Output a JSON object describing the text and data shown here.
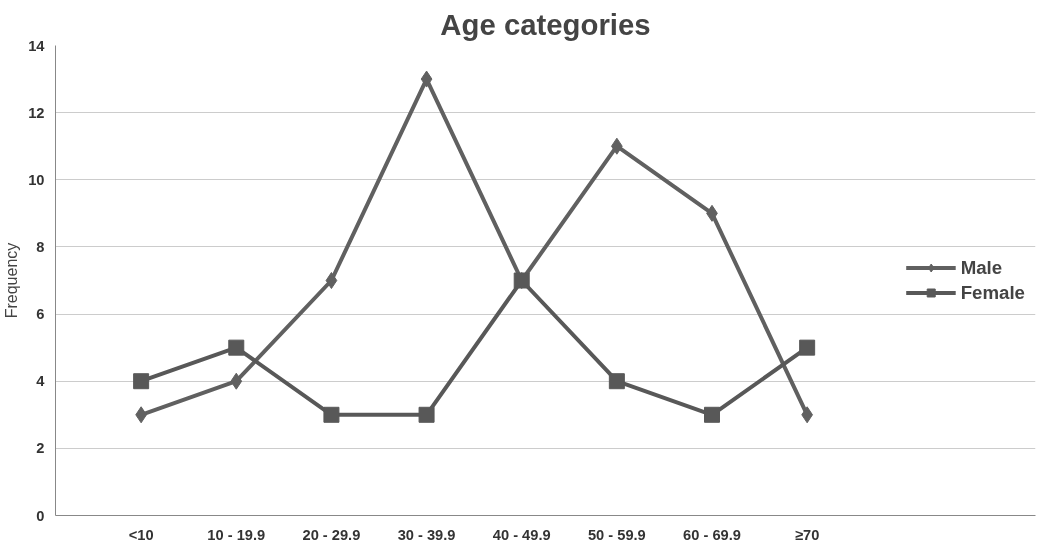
{
  "chart_data": {
    "type": "line",
    "title": "Age categories",
    "ylabel": "Frequency",
    "categories": [
      "<10",
      "10 - 19.9",
      "20 - 29.9",
      "30 - 39.9",
      "40 - 49.9",
      "50 - 59.9",
      "60 - 69.9",
      "≥70"
    ],
    "series": [
      {
        "name": "Male",
        "color": "#606060",
        "marker": "diamond",
        "values": [
          3,
          4,
          7,
          13,
          7,
          11,
          9,
          3
        ]
      },
      {
        "name": "Female",
        "color": "#585858",
        "marker": "square",
        "values": [
          4,
          5,
          3,
          3,
          7,
          4,
          3,
          5
        ]
      }
    ],
    "ylim": [
      0,
      14
    ],
    "yticks": [
      0,
      2,
      4,
      6,
      8,
      10,
      12,
      14
    ],
    "grid": "y",
    "legend": "right",
    "line_style": "solid"
  }
}
